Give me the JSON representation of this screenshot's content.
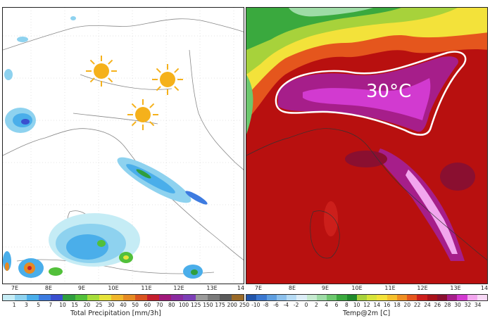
{
  "left_panel": {
    "lon_ticks": [
      "7E",
      "8E",
      "9E",
      "10E",
      "11E",
      "12E",
      "13E",
      "14"
    ],
    "colorbar_ticks": [
      "1",
      "3",
      "5",
      "7",
      "10",
      "15",
      "20",
      "25",
      "30",
      "40",
      "50",
      "60",
      "70",
      "80",
      "100",
      "125",
      "150",
      "175",
      "200",
      "250"
    ],
    "colorbar_title": "Total Precipitation [mm/3h]",
    "colorbar_colors": [
      "#c5ecf5",
      "#8ed2ef",
      "#4aaeea",
      "#3d7be0",
      "#3a4fcf",
      "#2f9e3f",
      "#52c03a",
      "#a6dd3b",
      "#e6e33a",
      "#f0b62a",
      "#e58a22",
      "#d9531f",
      "#c41e2d",
      "#a0197a",
      "#8a2ba0",
      "#7c3fb6",
      "#9a9a9a",
      "#7a7a7a",
      "#5a5a5a",
      "#9a6a28"
    ],
    "icons": [
      "sun-icon",
      "sun-icon",
      "sun-icon"
    ]
  },
  "right_panel": {
    "lon_ticks": [
      "7E",
      "8E",
      "9E",
      "10E",
      "11E",
      "12E",
      "13E",
      "14"
    ],
    "colorbar_ticks": [
      "-10",
      "-8",
      "-6",
      "-4",
      "-2",
      "0",
      "2",
      "4",
      "6",
      "8",
      "10",
      "12",
      "14",
      "16",
      "18",
      "20",
      "22",
      "24",
      "26",
      "28",
      "30",
      "32",
      "34"
    ],
    "colorbar_title": "Temp@2m [C]",
    "annotation": "30°C",
    "colorbar_colors": [
      "#2255aa",
      "#3b78d0",
      "#5e9ee0",
      "#8cc0ec",
      "#b6dbf4",
      "#dcedf7",
      "#c6ead0",
      "#9edca6",
      "#6cc86e",
      "#3aa93e",
      "#1f8a2a",
      "#a7d23b",
      "#d6e33a",
      "#f3e23a",
      "#f5c02c",
      "#ef8e22",
      "#e5561d",
      "#cc1f1b",
      "#a8121a",
      "#8a0f30",
      "#a61e8a",
      "#d23ad0",
      "#f2a6ee",
      "#f7d8f5"
    ]
  }
}
